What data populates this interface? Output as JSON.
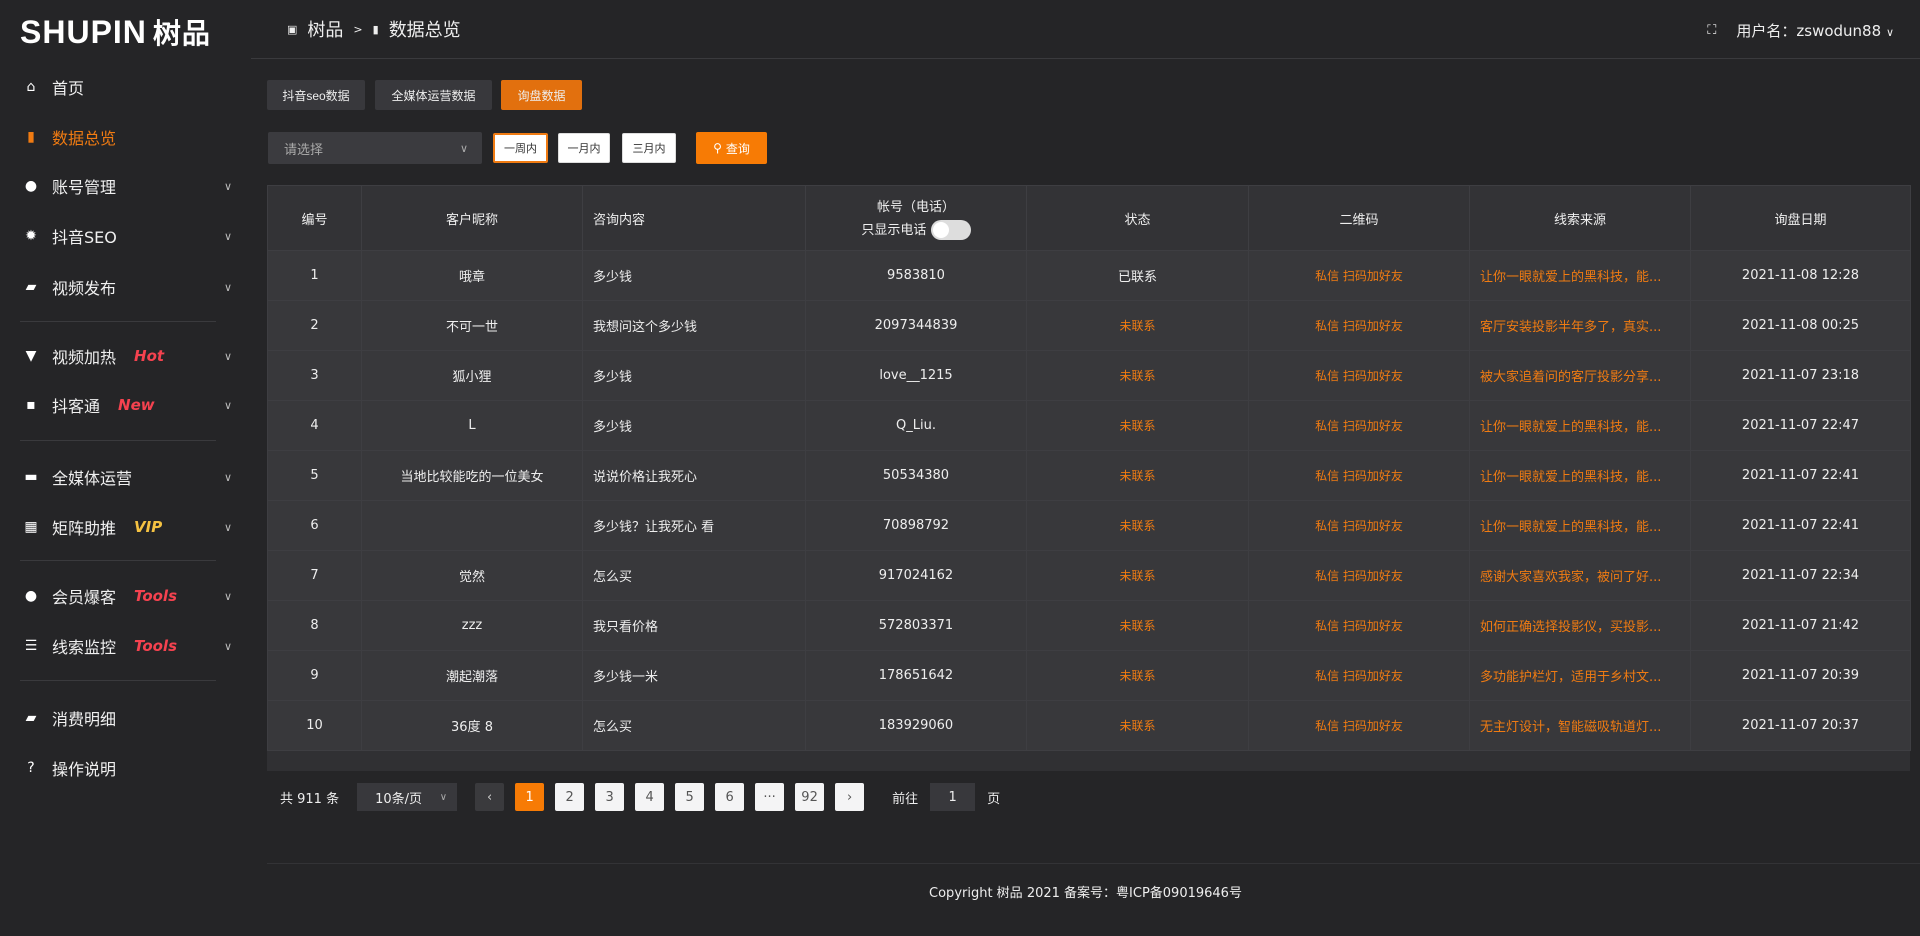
{
  "logo": {
    "en": "SHUPIN",
    "cn": "树品"
  },
  "sidebar": {
    "items": [
      {
        "label": "首页",
        "icon": "home-icon",
        "glyph": "⌂"
      },
      {
        "label": "数据总览",
        "icon": "bar-chart-icon",
        "glyph": "▮",
        "active": true
      },
      {
        "label": "账号管理",
        "icon": "user-icon",
        "glyph": "●",
        "chevron": true
      },
      {
        "label": "抖音SEO",
        "icon": "gear-icon",
        "glyph": "✹",
        "chevron": true
      },
      {
        "label": "视频发布",
        "icon": "video-icon",
        "glyph": "▰",
        "chevron": true
      },
      {
        "label": "视频加热",
        "icon": "fire-icon",
        "glyph": "▼",
        "badge": "Hot",
        "badge_color": "#f5424f",
        "chevron": true
      },
      {
        "label": "抖客通",
        "icon": "chat-icon",
        "glyph": "▪",
        "badge": "New",
        "badge_color": "#f5424f",
        "chevron": true
      },
      {
        "label": "全媒体运营",
        "icon": "monitor-icon",
        "glyph": "▬",
        "chevron": true
      },
      {
        "label": "矩阵助推",
        "icon": "grid-icon",
        "glyph": "▦",
        "badge": "VIP",
        "badge_color": "#f5c242",
        "chevron": true
      },
      {
        "label": "会员爆客",
        "icon": "member-icon",
        "glyph": "●",
        "badge": "Tools",
        "badge_color": "#f5424f",
        "chevron": true
      },
      {
        "label": "线索监控",
        "icon": "sliders-icon",
        "glyph": "☰",
        "badge": "Tools",
        "badge_color": "#f5424f",
        "chevron": true
      },
      {
        "label": "消费明细",
        "icon": "wallet-icon",
        "glyph": "▰"
      },
      {
        "label": "操作说明",
        "icon": "help-icon",
        "glyph": "?"
      }
    ]
  },
  "header": {
    "breadcrumb": [
      "树品",
      "数据总览"
    ],
    "separator": ">",
    "fullscreen_icon": "fullscreen-icon",
    "user": "用户名：zswodun88"
  },
  "tabs": [
    {
      "label": "抖音seo数据"
    },
    {
      "label": "全媒体运营数据"
    },
    {
      "label": "询盘数据",
      "active": true
    }
  ],
  "filters": {
    "select_placeholder": "请选择",
    "ranges": [
      "一周内",
      "一月内",
      "三月内"
    ],
    "active_range": "一周内",
    "query": "查询"
  },
  "table": {
    "columns": [
      "编号",
      "客户昵称",
      "咨询内容",
      "帐号（电话）",
      "状态",
      "二维码",
      "线索来源",
      "询盘日期"
    ],
    "phone_toggle_label": "只显示电话",
    "phone_toggle_on": false,
    "qr_text": "私信 扫码加好友",
    "rows": [
      [
        "1",
        "哦章",
        "多少钱",
        "9583810",
        "已联系",
        "让你一眼就爱上的黑科技，能...",
        "2021-11-08 12:28"
      ],
      [
        "2",
        "不可一世",
        "我想问这个多少钱",
        "2097344839",
        "未联系",
        "客厅安装投影半年多了，真实...",
        "2021-11-08 00:25"
      ],
      [
        "3",
        "狐小狸",
        "多少钱",
        "love__1215",
        "未联系",
        "被大家追着问的客厅投影分享...",
        "2021-11-07 23:18"
      ],
      [
        "4",
        "L",
        "多少钱",
        "Q_Liu.",
        "未联系",
        "让你一眼就爱上的黑科技，能...",
        "2021-11-07 22:47"
      ],
      [
        "5",
        "当地比较能吃的一位美女",
        "说说价格让我死心",
        "50534380",
        "未联系",
        "让你一眼就爱上的黑科技，能...",
        "2021-11-07 22:41"
      ],
      [
        "6",
        "",
        "多少钱？让我死心 看",
        "70898792",
        "未联系",
        "让你一眼就爱上的黑科技，能...",
        "2021-11-07 22:41"
      ],
      [
        "7",
        "觉然",
        "怎么买",
        "917024162",
        "未联系",
        "感谢大家喜欢我家，被问了好...",
        "2021-11-07 22:34"
      ],
      [
        "8",
        "zzz",
        "我只看价格",
        "572803371",
        "未联系",
        "如何正确选择投影仪，买投影...",
        "2021-11-07 21:42"
      ],
      [
        "9",
        "潮起潮落",
        "多少钱一米",
        "178651642",
        "未联系",
        "多功能护栏灯，适用于乡村文...",
        "2021-11-07 20:39"
      ],
      [
        "10",
        "36度 8",
        "怎么买",
        "183929060",
        "未联系",
        "无主灯设计，智能磁吸轨道灯...",
        "2021-11-07 20:37"
      ]
    ]
  },
  "pagination": {
    "total": "共 911 条",
    "page_size": "10条/页",
    "pages": [
      "1",
      "2",
      "3",
      "4",
      "5",
      "6",
      "···",
      "92"
    ],
    "current": "1",
    "goto_label": "前往",
    "goto_value": "1",
    "page_suffix": "页"
  },
  "footer": {
    "copyright": "Copyright 树品 2021 备案号：粤ICP备09019646号"
  },
  "colors": {
    "accent": "#f07b12",
    "bg": "#252527",
    "table": "#38383b"
  }
}
